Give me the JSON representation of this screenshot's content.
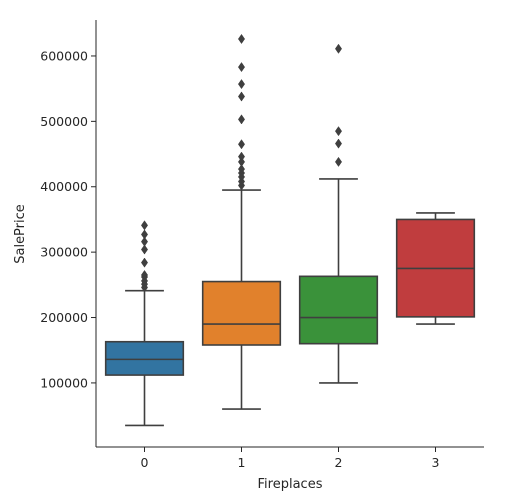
{
  "chart_data": {
    "type": "box",
    "xlabel": "Fireplaces",
    "ylabel": "SalePrice",
    "categories": [
      "0",
      "1",
      "2",
      "3"
    ],
    "ylim": [
      2000,
      655000
    ],
    "y_ticks": [
      100000,
      200000,
      300000,
      400000,
      500000,
      600000
    ],
    "y_tick_labels": [
      "100000",
      "200000",
      "300000",
      "400000",
      "500000",
      "600000"
    ],
    "grid": false,
    "spines": "left-bottom",
    "colors": [
      "#3274a1",
      "#e1812c",
      "#3a923a",
      "#c03d3e"
    ],
    "boxes": [
      {
        "category": "0",
        "whisker_low": 35000,
        "q1": 112000,
        "median": 136000,
        "q3": 163000,
        "whisker_high": 241000,
        "outliers": [
          246000,
          251000,
          256000,
          262000,
          265000,
          284000,
          304000,
          316000,
          327000,
          341000
        ]
      },
      {
        "category": "1",
        "whisker_low": 60000,
        "q1": 158000,
        "median": 190000,
        "q3": 255000,
        "whisker_high": 395000,
        "outliers": [
          402000,
          408000,
          415000,
          421000,
          427000,
          438000,
          446000,
          465000,
          503000,
          538000,
          557000,
          583000,
          626000
        ]
      },
      {
        "category": "2",
        "whisker_low": 100000,
        "q1": 160000,
        "median": 200000,
        "q3": 263000,
        "whisker_high": 412000,
        "outliers": [
          438000,
          466000,
          485000,
          611000
        ]
      },
      {
        "category": "3",
        "whisker_low": 190000,
        "q1": 201000,
        "median": 275000,
        "q3": 350000,
        "whisker_high": 360000,
        "outliers": []
      }
    ]
  }
}
